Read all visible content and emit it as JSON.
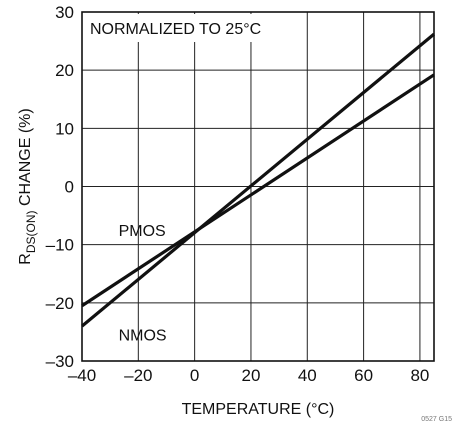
{
  "chart_data": {
    "type": "line",
    "xlabel": "TEMPERATURE (°C)",
    "ylabel_main": "R",
    "ylabel_sub": "DS(ON)",
    "ylabel_rest": " CHANGE (%)",
    "xlim": [
      -40,
      85
    ],
    "ylim": [
      -30,
      30
    ],
    "xticks": [
      -40,
      -20,
      0,
      20,
      40,
      60,
      80
    ],
    "xtick_labels": [
      "–40",
      "–20",
      "0",
      "20",
      "40",
      "60",
      "80"
    ],
    "yticks": [
      -30,
      -20,
      -10,
      0,
      10,
      20,
      30
    ],
    "ytick_labels": [
      "–30",
      "–20",
      "–10",
      "0",
      "10",
      "20",
      "30"
    ],
    "grid": true,
    "annotations": {
      "normalized": "NORMALIZED TO 25°C",
      "footer": "0527 G15"
    },
    "series": [
      {
        "name": "PMOS",
        "x": [
          -40,
          85
        ],
        "y": [
          -20.5,
          19.2
        ]
      },
      {
        "name": "NMOS",
        "x": [
          -40,
          85
        ],
        "y": [
          -24,
          26.2
        ]
      }
    ],
    "labels": [
      {
        "text": "PMOS",
        "x": -27,
        "y": -8.5
      },
      {
        "text": "NMOS",
        "x": -27,
        "y": -26.5
      }
    ]
  }
}
